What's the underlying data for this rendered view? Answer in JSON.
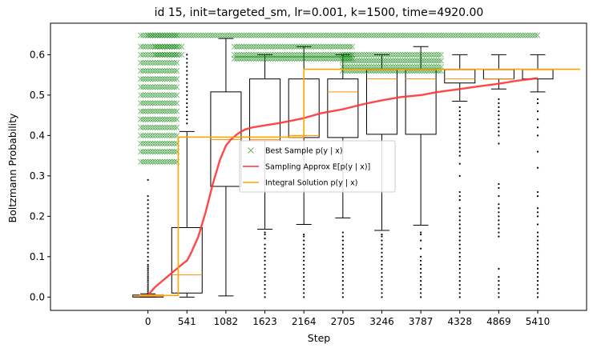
{
  "chart_data": {
    "type": "line",
    "title": "id 15, init=targeted_sm, lr=0.001, k=1500, time=4920.00",
    "xlabel": "Step",
    "ylabel": "Boltzmann Probability",
    "xlim": [
      -1353,
      6088
    ],
    "ylim": [
      -0.033,
      0.678
    ],
    "x_ticks": [
      0,
      541,
      1082,
      1623,
      2164,
      2705,
      3246,
      3787,
      4328,
      4869,
      5410
    ],
    "y_ticks": [
      0.0,
      0.1,
      0.2,
      0.3,
      0.4,
      0.5,
      0.6
    ],
    "grid": false,
    "legend_position": "center",
    "legend": [
      {
        "label": "Best Sample $p(y \\mid x)$",
        "color": "#008000",
        "marker": "x"
      },
      {
        "label": "Sampling Approx $E[p(y \\mid x)]$",
        "color": "#ff3333",
        "marker": "line"
      },
      {
        "label": "Integral Solution $p(y \\mid x)$",
        "color": "#ffa500",
        "marker": "line"
      }
    ],
    "boxplots": [
      {
        "x": 0,
        "q1": 0.0,
        "median": 0.002,
        "q3": 0.005,
        "whisker_low": 0.0,
        "whisker_high": 0.008,
        "outliers": [
          0.01,
          0.015,
          0.02,
          0.025,
          0.03,
          0.035,
          0.04,
          0.045,
          0.05,
          0.055,
          0.06,
          0.065,
          0.07,
          0.075,
          0.08,
          0.09,
          0.1,
          0.11,
          0.12,
          0.13,
          0.14,
          0.15,
          0.16,
          0.17,
          0.18,
          0.19,
          0.2,
          0.21,
          0.22,
          0.23,
          0.24,
          0.25,
          0.29
        ]
      },
      {
        "x": 541,
        "q1": 0.01,
        "median": 0.055,
        "q3": 0.172,
        "whisker_low": 0.0,
        "whisker_high": 0.41,
        "outliers": [
          0.43,
          0.44,
          0.45,
          0.46,
          0.47,
          0.48,
          0.49,
          0.5,
          0.51,
          0.52,
          0.53,
          0.54,
          0.55,
          0.56,
          0.57,
          0.58,
          0.59,
          0.6
        ]
      },
      {
        "x": 1082,
        "q1": 0.274,
        "median": 0.39,
        "q3": 0.508,
        "whisker_low": 0.003,
        "whisker_high": 0.64,
        "outliers": []
      },
      {
        "x": 1623,
        "q1": 0.387,
        "median": 0.39,
        "q3": 0.54,
        "whisker_low": 0.168,
        "whisker_high": 0.6,
        "outliers": [
          0.0,
          0.01,
          0.02,
          0.03,
          0.04,
          0.05,
          0.06,
          0.07,
          0.08,
          0.09,
          0.1,
          0.11,
          0.12,
          0.13,
          0.145,
          0.155,
          0.16
        ]
      },
      {
        "x": 2164,
        "q1": 0.395,
        "median": 0.4,
        "q3": 0.54,
        "whisker_low": 0.18,
        "whisker_high": 0.62,
        "outliers": [
          0.0,
          0.01,
          0.02,
          0.03,
          0.04,
          0.05,
          0.06,
          0.07,
          0.08,
          0.09,
          0.1,
          0.11,
          0.12,
          0.13,
          0.14,
          0.15,
          0.155
        ]
      },
      {
        "x": 2705,
        "q1": 0.395,
        "median": 0.508,
        "q3": 0.54,
        "whisker_low": 0.196,
        "whisker_high": 0.6,
        "outliers": [
          0.0,
          0.01,
          0.02,
          0.03,
          0.04,
          0.05,
          0.06,
          0.07,
          0.08,
          0.09,
          0.1,
          0.11,
          0.12,
          0.13,
          0.14,
          0.15,
          0.16
        ]
      },
      {
        "x": 3246,
        "q1": 0.403,
        "median": 0.54,
        "q3": 0.563,
        "whisker_low": 0.165,
        "whisker_high": 0.6,
        "outliers": [
          0.0,
          0.01,
          0.02,
          0.03,
          0.04,
          0.05,
          0.06,
          0.07,
          0.08,
          0.09,
          0.1,
          0.11,
          0.12,
          0.13,
          0.14,
          0.15,
          0.155
        ]
      },
      {
        "x": 3787,
        "q1": 0.403,
        "median": 0.54,
        "q3": 0.563,
        "whisker_low": 0.178,
        "whisker_high": 0.62,
        "outliers": [
          0.0,
          0.01,
          0.02,
          0.03,
          0.04,
          0.05,
          0.06,
          0.07,
          0.08,
          0.09,
          0.1,
          0.12,
          0.14,
          0.155,
          0.16
        ]
      },
      {
        "x": 4328,
        "q1": 0.53,
        "median": 0.54,
        "q3": 0.563,
        "whisker_low": 0.485,
        "whisker_high": 0.6,
        "outliers": [
          0.0,
          0.01,
          0.02,
          0.03,
          0.04,
          0.05,
          0.06,
          0.07,
          0.08,
          0.09,
          0.1,
          0.11,
          0.12,
          0.13,
          0.14,
          0.15,
          0.16,
          0.17,
          0.18,
          0.19,
          0.2,
          0.21,
          0.22,
          0.24,
          0.25,
          0.26,
          0.3,
          0.33,
          0.35,
          0.36,
          0.37,
          0.38,
          0.39,
          0.4,
          0.41,
          0.42,
          0.43,
          0.44,
          0.45,
          0.46,
          0.47
        ]
      },
      {
        "x": 4869,
        "q1": 0.54,
        "median": 0.54,
        "q3": 0.563,
        "whisker_low": 0.515,
        "whisker_high": 0.6,
        "outliers": [
          0.0,
          0.01,
          0.02,
          0.03,
          0.04,
          0.05,
          0.07,
          0.15,
          0.16,
          0.17,
          0.18,
          0.19,
          0.2,
          0.21,
          0.22,
          0.23,
          0.25,
          0.27,
          0.28,
          0.38,
          0.4,
          0.41,
          0.42,
          0.43,
          0.44,
          0.45,
          0.46,
          0.47,
          0.48,
          0.49
        ]
      },
      {
        "x": 5410,
        "q1": 0.54,
        "median": 0.563,
        "q3": 0.563,
        "whisker_low": 0.508,
        "whisker_high": 0.6,
        "outliers": [
          0.0,
          0.01,
          0.02,
          0.03,
          0.04,
          0.05,
          0.06,
          0.07,
          0.08,
          0.09,
          0.1,
          0.11,
          0.12,
          0.13,
          0.14,
          0.15,
          0.16,
          0.18,
          0.2,
          0.21,
          0.22,
          0.25,
          0.26,
          0.32,
          0.36,
          0.4,
          0.42,
          0.44,
          0.46,
          0.48,
          0.49
        ]
      }
    ],
    "series": [
      {
        "name": "Sampling Approx $E[p(y \\mid x)]$",
        "type": "line",
        "color": "#ff3333",
        "x": [
          0,
          100,
          200,
          300,
          400,
          500,
          541,
          600,
          700,
          800,
          900,
          1000,
          1082,
          1150,
          1250,
          1350,
          1450,
          1623,
          1800,
          2000,
          2164,
          2400,
          2705,
          3000,
          3246,
          3500,
          3787,
          4000,
          4328,
          4600,
          4869,
          5100,
          5410
        ],
        "y": [
          0.005,
          0.025,
          0.04,
          0.055,
          0.07,
          0.085,
          0.09,
          0.11,
          0.15,
          0.21,
          0.28,
          0.34,
          0.375,
          0.39,
          0.405,
          0.415,
          0.42,
          0.425,
          0.43,
          0.437,
          0.443,
          0.455,
          0.465,
          0.478,
          0.487,
          0.495,
          0.5,
          0.507,
          0.515,
          0.522,
          0.528,
          0.535,
          0.542
        ]
      },
      {
        "name": "Integral Solution $p(y \\mid x)$",
        "type": "step",
        "color": "#ffa500",
        "x": [
          -120,
          420,
          420,
          2164,
          2164,
          2164,
          2164,
          2300,
          2300,
          6000
        ],
        "y": [
          0.004,
          0.004,
          0.396,
          0.396,
          0.396,
          0.564,
          0.564,
          0.564,
          0.564,
          0.564
        ]
      }
    ],
    "best_sample": {
      "name": "Best Sample $p(y \\mid x)$",
      "type": "scatter",
      "color": "#008000",
      "clusters": [
        {
          "x_from": -100,
          "x_to": 420,
          "y_levels": [
            0.335,
            0.36,
            0.38,
            0.4,
            0.42,
            0.44,
            0.46,
            0.48,
            0.5,
            0.52,
            0.54,
            0.56,
            0.58,
            0.6,
            0.62,
            0.648
          ]
        },
        {
          "x_from": 0,
          "x_to": 5410,
          "y_levels": [
            0.648
          ]
        },
        {
          "x_from": 100,
          "x_to": 500,
          "y_levels": [
            0.6,
            0.62
          ]
        },
        {
          "x_from": 1200,
          "x_to": 2850,
          "y_levels": [
            0.59,
            0.6,
            0.62
          ]
        },
        {
          "x_from": 2700,
          "x_to": 4100,
          "y_levels": [
            0.56,
            0.57,
            0.585,
            0.6
          ]
        }
      ]
    }
  }
}
